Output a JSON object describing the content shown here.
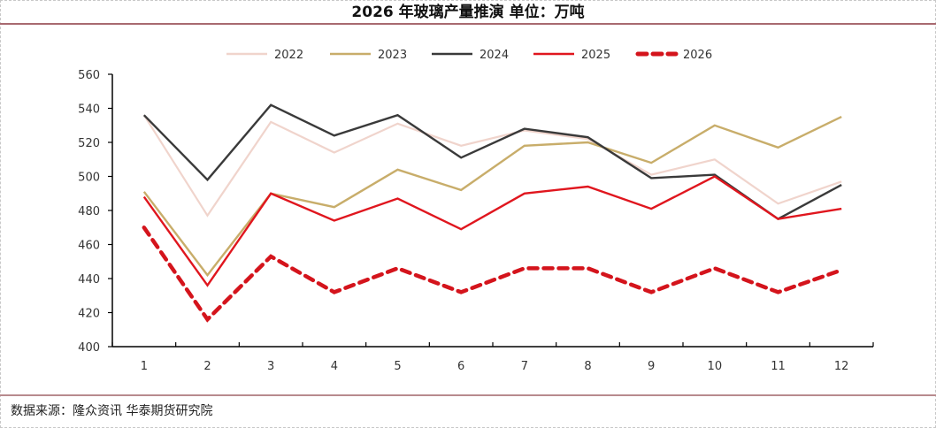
{
  "title": "2026 年玻璃产量推演    单位：万吨",
  "source": "数据来源：隆众资讯  华泰期货研究院",
  "colors": {
    "2022": "#f0d4cc",
    "2023": "#c8ad6a",
    "2024": "#3a3a3a",
    "2025": "#e0161e",
    "2026": "#d4141c",
    "rule": "#a86a70"
  },
  "chart_data": {
    "type": "line",
    "title": "2026 年玻璃产量推演 单位：万吨",
    "xlabel": "",
    "ylabel": "",
    "categories": [
      "1",
      "2",
      "3",
      "4",
      "5",
      "6",
      "7",
      "8",
      "9",
      "10",
      "11",
      "12"
    ],
    "ylim": [
      400,
      560
    ],
    "yticks": [
      400,
      420,
      440,
      460,
      480,
      500,
      520,
      540,
      560
    ],
    "grid": false,
    "legend_position": "top",
    "series": [
      {
        "name": "2022",
        "style": "solid",
        "values": [
          536,
          477,
          532,
          514,
          531,
          518,
          527,
          522,
          501,
          510,
          484,
          497
        ]
      },
      {
        "name": "2023",
        "style": "solid",
        "values": [
          491,
          442,
          490,
          482,
          504,
          492,
          518,
          520,
          508,
          530,
          517,
          535
        ]
      },
      {
        "name": "2024",
        "style": "solid",
        "values": [
          536,
          498,
          542,
          524,
          536,
          511,
          528,
          523,
          499,
          501,
          475,
          495
        ]
      },
      {
        "name": "2025",
        "style": "solid",
        "values": [
          488,
          436,
          490,
          474,
          487,
          469,
          490,
          494,
          481,
          500,
          475,
          481
        ]
      },
      {
        "name": "2026",
        "style": "dashed",
        "values": [
          470,
          416,
          453,
          432,
          446,
          432,
          446,
          446,
          432,
          446,
          432,
          445
        ]
      }
    ]
  }
}
